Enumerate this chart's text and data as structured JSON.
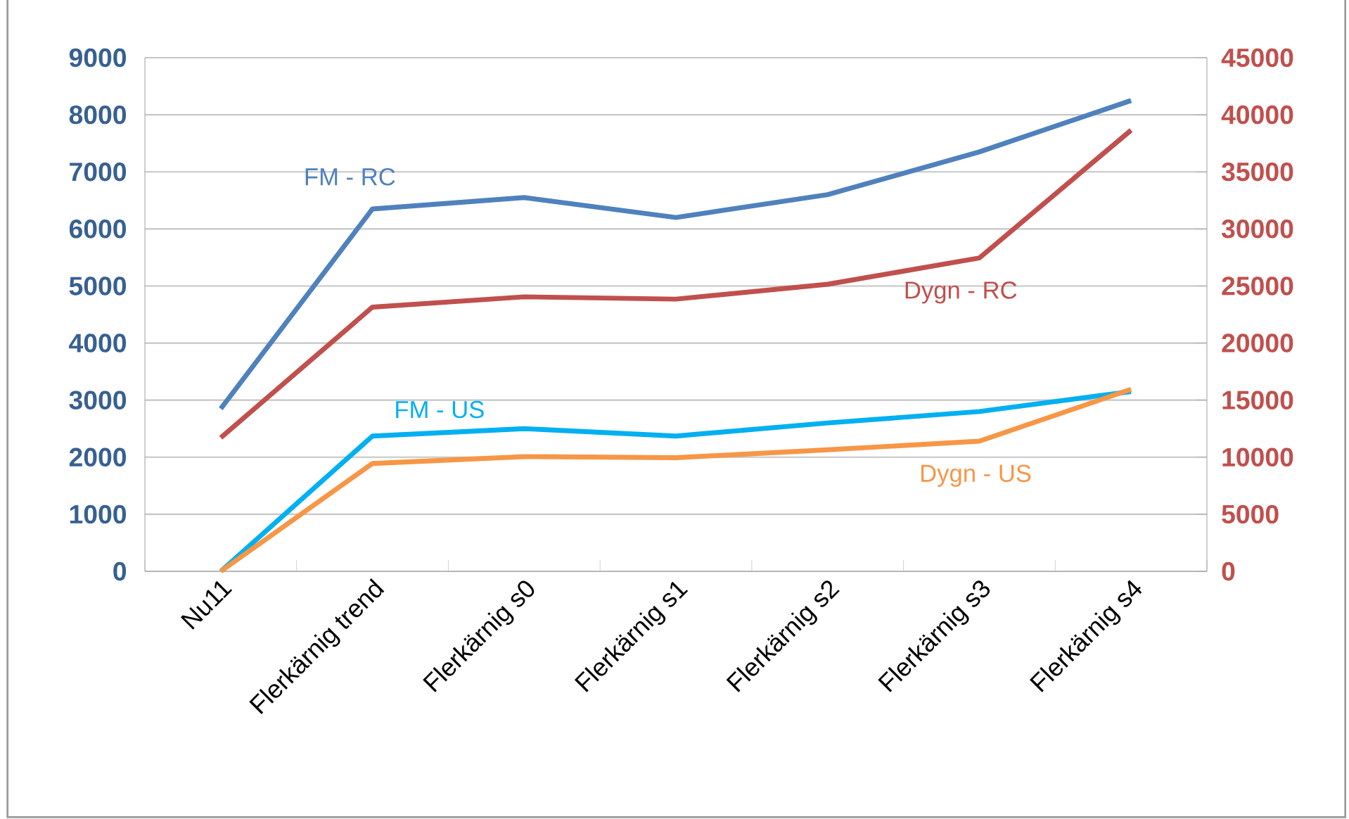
{
  "chart_data": {
    "type": "line",
    "categories": [
      "Nu11",
      "Flerkärnig trend",
      "Flerkärnig s0",
      "Flerkärnig s1",
      "Flerkärnig s2",
      "Flerkärnig s3",
      "Flerkärnig s4"
    ],
    "series": [
      {
        "name": "FM - RC",
        "color": "#4f81bd",
        "values": [
          2850,
          6350,
          6550,
          6200,
          6600,
          7350,
          8250
        ]
      },
      {
        "name": "Dygn - RC",
        "color": "#c0504d",
        "axis": "y2",
        "values": [
          11700,
          23150,
          24050,
          23850,
          25150,
          27450,
          38650
        ]
      },
      {
        "name": "FM - US",
        "color": "#00b0f0",
        "values": [
          0,
          2370,
          2500,
          2370,
          2600,
          2800,
          3150
        ]
      },
      {
        "name": "Dygn - US",
        "color": "#f79646",
        "axis": "y2",
        "values": [
          0,
          9450,
          10050,
          9950,
          10650,
          11400,
          15950
        ]
      }
    ],
    "ylim": [
      0,
      9000
    ],
    "yticks": [
      0,
      1000,
      2000,
      3000,
      4000,
      5000,
      6000,
      7000,
      8000,
      9000
    ],
    "y2lim": [
      0,
      45000
    ],
    "y2ticks": [
      0,
      5000,
      10000,
      15000,
      20000,
      25000,
      30000,
      35000,
      40000,
      45000
    ],
    "grid": "y",
    "legend": false,
    "marker": "none",
    "line_style": "solid"
  }
}
